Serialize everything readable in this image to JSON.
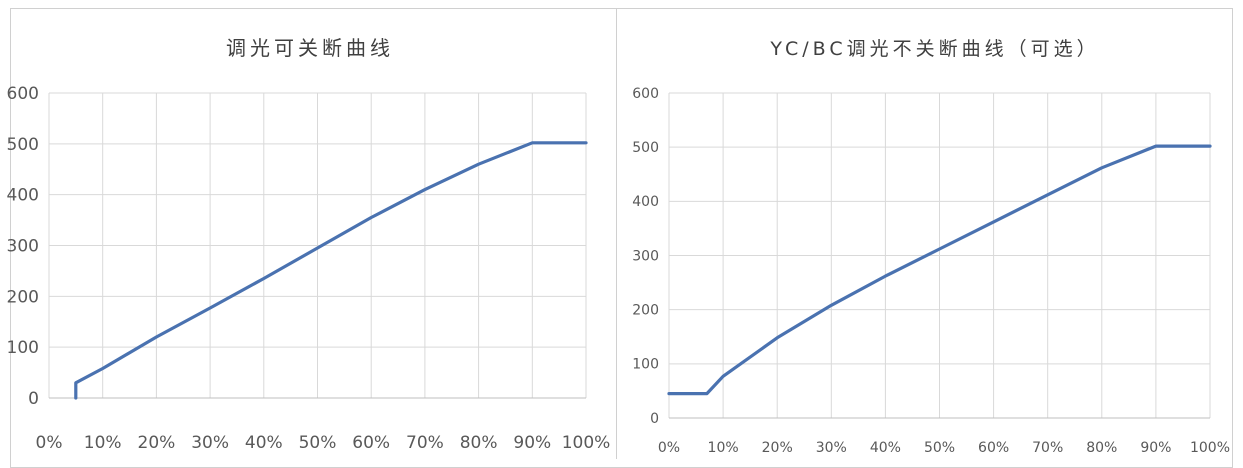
{
  "chart_data": [
    {
      "type": "line",
      "title": "调光可关断曲线",
      "x_categories": [
        "0%",
        "10%",
        "20%",
        "30%",
        "40%",
        "50%",
        "60%",
        "70%",
        "80%",
        "90%",
        "100%"
      ],
      "y_ticks": [
        "600",
        "500",
        "400",
        "300",
        "200",
        "100",
        "0"
      ],
      "xlim": [
        0,
        100
      ],
      "ylim": [
        0,
        600
      ],
      "grid": true,
      "line_color": "#4a72b0",
      "series": [
        {
          "x": [
            5,
            5,
            10,
            20,
            30,
            40,
            50,
            60,
            70,
            80,
            90,
            100
          ],
          "y": [
            0,
            30,
            58,
            120,
            177,
            235,
            295,
            355,
            410,
            460,
            502,
            502
          ]
        }
      ]
    },
    {
      "type": "line",
      "title": "YC/BC调光不关断曲线（可选）",
      "x_categories": [
        "0%",
        "10%",
        "20%",
        "30%",
        "40%",
        "50%",
        "60%",
        "70%",
        "80%",
        "90%",
        "100%"
      ],
      "y_ticks": [
        "600",
        "500",
        "400",
        "300",
        "200",
        "100",
        "0"
      ],
      "xlim": [
        0,
        100
      ],
      "ylim": [
        0,
        600
      ],
      "grid": true,
      "line_color": "#4a72b0",
      "series": [
        {
          "x": [
            0,
            7,
            10,
            20,
            30,
            40,
            50,
            60,
            70,
            80,
            90,
            100
          ],
          "y": [
            45,
            45,
            77,
            148,
            208,
            262,
            312,
            362,
            412,
            462,
            502,
            502
          ]
        }
      ]
    }
  ]
}
